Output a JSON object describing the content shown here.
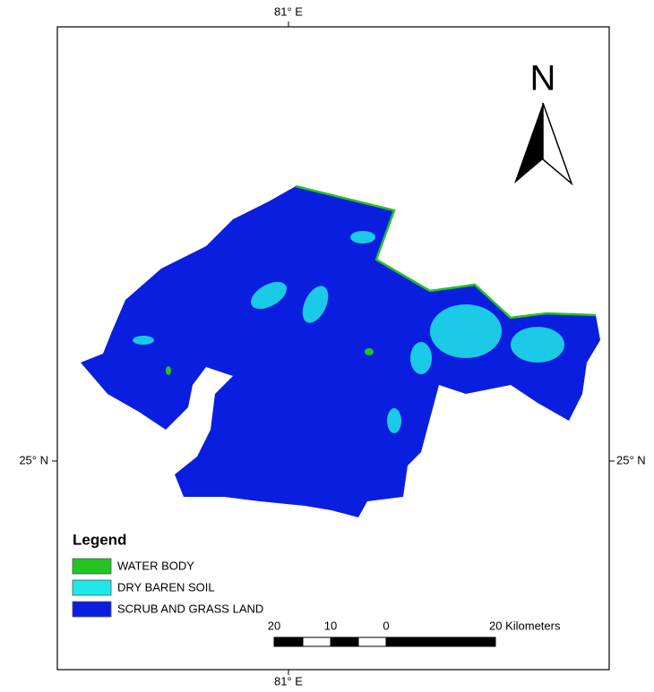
{
  "map": {
    "graticule": {
      "top": "81° E",
      "bottom": "81° E",
      "left": "25° N",
      "right": "25° N"
    },
    "north_arrow": {
      "label": "N"
    },
    "legend": {
      "title": "Legend",
      "items": [
        {
          "label": "WATER BODY",
          "color": "#22c422"
        },
        {
          "label": "DRY BAREN SOIL",
          "color": "#1ee8e8"
        },
        {
          "label": "SCRUB AND GRASS LAND",
          "color": "#0a1ee0"
        }
      ]
    },
    "scale_bar": {
      "labels": [
        "20",
        "10",
        "0",
        "20 Kilometers"
      ]
    }
  }
}
